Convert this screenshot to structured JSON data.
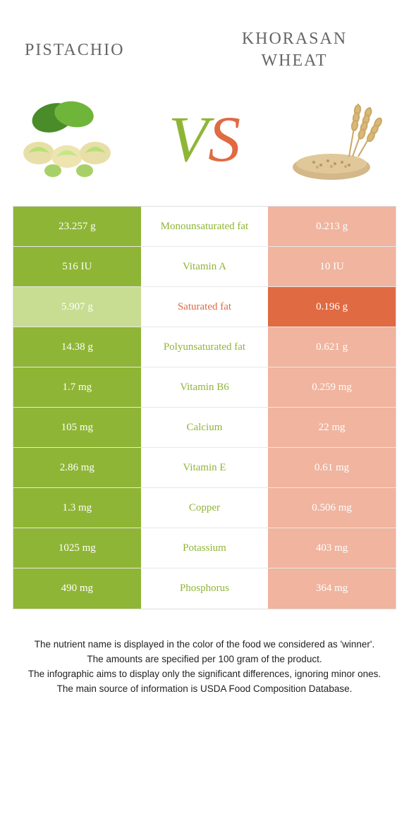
{
  "header": {
    "left_title": "PISTACHIO",
    "right_title_line1": "KHORASAN",
    "right_title_line2": "WHEAT"
  },
  "vs": {
    "v": "V",
    "s": "S"
  },
  "colors": {
    "green": "#8fb536",
    "green_light": "#c8dd92",
    "orange": "#e06a42",
    "orange_light": "#f0b49f",
    "text": "#333333",
    "border": "#dddddd"
  },
  "rows": [
    {
      "left": "23.257 g",
      "mid": "Monounsaturated fat",
      "right": "0.213 g",
      "winner": "left"
    },
    {
      "left": "516 IU",
      "mid": "Vitamin A",
      "right": "10 IU",
      "winner": "left"
    },
    {
      "left": "5.907 g",
      "mid": "Saturated fat",
      "right": "0.196 g",
      "winner": "right"
    },
    {
      "left": "14.38 g",
      "mid": "Polyunsaturated fat",
      "right": "0.621 g",
      "winner": "left"
    },
    {
      "left": "1.7 mg",
      "mid": "Vitamin B6",
      "right": "0.259 mg",
      "winner": "left"
    },
    {
      "left": "105 mg",
      "mid": "Calcium",
      "right": "22 mg",
      "winner": "left"
    },
    {
      "left": "2.86 mg",
      "mid": "Vitamin E",
      "right": "0.61 mg",
      "winner": "left"
    },
    {
      "left": "1.3 mg",
      "mid": "Copper",
      "right": "0.506 mg",
      "winner": "left"
    },
    {
      "left": "1025 mg",
      "mid": "Potassium",
      "right": "403 mg",
      "winner": "left"
    },
    {
      "left": "490 mg",
      "mid": "Phosphorus",
      "right": "364 mg",
      "winner": "left"
    }
  ],
  "footer": {
    "line1": "The nutrient name is displayed in the color of the food we considered as 'winner'.",
    "line2": "The amounts are specified per 100 gram of the product.",
    "line3": "The infographic aims to display only the significant differences, ignoring minor ones.",
    "line4": "The main source of information is USDA Food Composition Database."
  }
}
